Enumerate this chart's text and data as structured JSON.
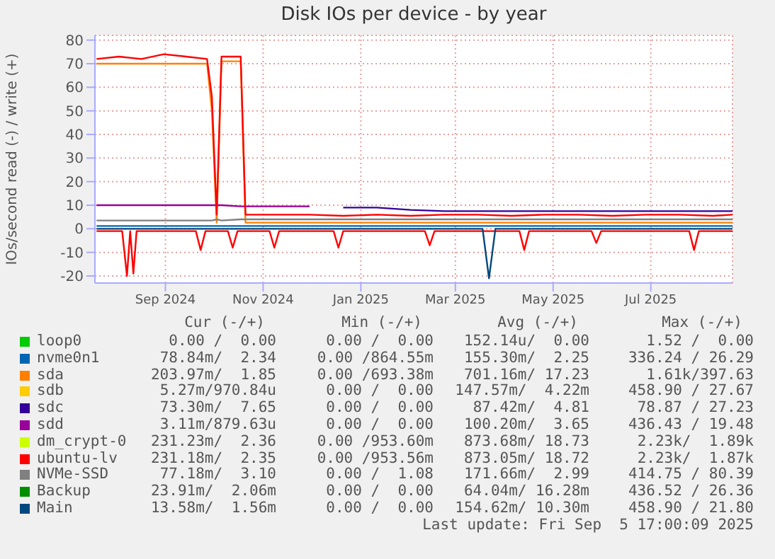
{
  "chart_data": {
    "type": "line",
    "title": "Disk IOs per device - by year",
    "ylabel": "IOs/second read (-) / write (+)",
    "x": [
      "2024-07-20",
      "2024-08-03",
      "2024-08-17",
      "2024-08-31",
      "2024-09-14",
      "2024-09-27",
      "2024-09-30",
      "2024-10-03",
      "2024-10-06",
      "2024-10-18",
      "2024-10-21",
      "2024-11-09",
      "2024-11-30",
      "2024-12-21",
      "2025-01-11",
      "2025-02-01",
      "2025-02-22",
      "2025-03-15",
      "2025-04-05",
      "2025-04-26",
      "2025-05-17",
      "2025-06-07",
      "2025-06-28",
      "2025-07-19",
      "2025-08-09",
      "2025-08-21"
    ],
    "xlim": [
      "2024-07-19",
      "2025-08-21"
    ],
    "xticks": [
      {
        "value": "2024-09-01",
        "label": "Sep 2024"
      },
      {
        "value": "2024-11-01",
        "label": "Nov 2024"
      },
      {
        "value": "2025-01-01",
        "label": "Jan 2025"
      },
      {
        "value": "2025-03-01",
        "label": "Mar 2025"
      },
      {
        "value": "2025-05-01",
        "label": "May 2025"
      },
      {
        "value": "2025-07-01",
        "label": "Jul 2025"
      }
    ],
    "ylim": [
      -23,
      82
    ],
    "yticks": [
      -20,
      -10,
      0,
      10,
      20,
      30,
      40,
      50,
      60,
      70,
      80
    ],
    "grid": true,
    "legend": "bottom",
    "series": [
      {
        "name": "loop0",
        "color": "#00cc00",
        "values": [
          null,
          null,
          null,
          null,
          null,
          null,
          null,
          null,
          null,
          null,
          null,
          null,
          null,
          null,
          null,
          null,
          null,
          null,
          null,
          null,
          null,
          null,
          null,
          null,
          null,
          null
        ]
      },
      {
        "name": "nvme0n1",
        "color": "#0066b3",
        "values": [
          1.2,
          1.2,
          1.2,
          1.2,
          1.2,
          1.2,
          1.2,
          1.2,
          1.2,
          1.2,
          1.2,
          1.2,
          1.2,
          1.2,
          1.2,
          1.2,
          1.2,
          1.2,
          1.2,
          1.2,
          1.2,
          1.2,
          1.2,
          1.2,
          1.2,
          1.2
        ]
      },
      {
        "name": "sda",
        "color": "#ff8000",
        "values": [
          70,
          70,
          70,
          70,
          70,
          70,
          50,
          2.6,
          71,
          71,
          2.6,
          2.6,
          2.6,
          2.6,
          2.6,
          2.6,
          2.6,
          2.6,
          2.6,
          2.6,
          2.6,
          2.6,
          2.6,
          2.6,
          2.6,
          2.6
        ]
      },
      {
        "name": "sdb",
        "color": "#ffcc00",
        "values": [
          null,
          null,
          null,
          null,
          null,
          null,
          null,
          null,
          null,
          null,
          null,
          null,
          null,
          null,
          null,
          null,
          null,
          null,
          null,
          null,
          null,
          null,
          null,
          null,
          null,
          null
        ]
      },
      {
        "name": "sdc",
        "color": "#330099",
        "values": [
          null,
          null,
          null,
          null,
          null,
          null,
          null,
          null,
          null,
          null,
          null,
          null,
          null,
          9,
          9,
          8,
          7.5,
          7.5,
          7.5,
          7.5,
          7.5,
          7.5,
          7.5,
          7.5,
          7.5,
          7.5
        ]
      },
      {
        "name": "sdd",
        "color": "#990099",
        "values": [
          10,
          10,
          10,
          10,
          10,
          10,
          10,
          10,
          10,
          9.5,
          9.5,
          9.5,
          9.5,
          null,
          null,
          null,
          null,
          null,
          null,
          null,
          null,
          null,
          null,
          null,
          null,
          null
        ]
      },
      {
        "name": "dm_crypt-0",
        "color": "#ccff00",
        "values": [
          null,
          null,
          null,
          null,
          null,
          null,
          null,
          null,
          null,
          null,
          null,
          null,
          null,
          null,
          null,
          null,
          null,
          null,
          null,
          null,
          null,
          null,
          null,
          null,
          null,
          null
        ]
      },
      {
        "name": "ubuntu-lv",
        "color": "#ff0000",
        "values": [
          72,
          73,
          72,
          74,
          73,
          72,
          56,
          6,
          73,
          73,
          6,
          6,
          6,
          5.5,
          6,
          5.5,
          6,
          6,
          5.5,
          6,
          6,
          5.5,
          6,
          6,
          5.5,
          6
        ]
      },
      {
        "name": "NVMe-SSD",
        "color": "#808080",
        "values": [
          3.5,
          3.5,
          3.5,
          3.5,
          3.5,
          3.5,
          3.5,
          4,
          3.5,
          4,
          4,
          4,
          4,
          4,
          4,
          4,
          4,
          4,
          4,
          4,
          4,
          4,
          4,
          4,
          4,
          4
        ]
      },
      {
        "name": "Backup",
        "color": "#008f00",
        "values": [
          null,
          null,
          null,
          null,
          null,
          null,
          null,
          null,
          null,
          null,
          null,
          null,
          null,
          null,
          null,
          null,
          null,
          null,
          null,
          null,
          null,
          null,
          null,
          null,
          null,
          null
        ]
      },
      {
        "name": "Main",
        "color": "#00487d",
        "values": [
          null,
          null,
          null,
          null,
          null,
          null,
          null,
          null,
          null,
          null,
          null,
          null,
          null,
          null,
          null,
          null,
          null,
          null,
          null,
          null,
          null,
          null,
          null,
          null,
          null,
          null
        ]
      },
      {
        "color": "#ff0000",
        "x": [
          "2024-07-20",
          "2024-08-05",
          "2024-08-08",
          "2024-08-10",
          "2024-08-12",
          "2024-08-14",
          "2024-09-20",
          "2024-09-23",
          "2024-09-26",
          "2024-10-10",
          "2024-10-13",
          "2024-10-16",
          "2024-11-05",
          "2024-11-08",
          "2024-11-11",
          "2024-12-15",
          "2024-12-18",
          "2024-12-21",
          "2025-02-10",
          "2025-02-13",
          "2025-02-16",
          "2025-04-10",
          "2025-04-13",
          "2025-04-16",
          "2025-05-25",
          "2025-05-28",
          "2025-05-31",
          "2025-07-25",
          "2025-07-28",
          "2025-07-31",
          "2025-08-21"
        ],
        "values": [
          -1,
          -1,
          -20,
          -1,
          -19,
          -1,
          -1,
          -9,
          -1,
          -1,
          -8,
          -1,
          -1,
          -8,
          -1,
          -1,
          -8,
          -1,
          -1,
          -7,
          -1,
          -1,
          -9,
          -1,
          -1,
          -6,
          -1,
          -1,
          -9,
          -1,
          -1
        ]
      },
      {
        "color": "#00487d",
        "x": [
          "2024-07-20",
          "2025-03-18",
          "2025-03-22",
          "2025-03-26",
          "2025-08-21"
        ],
        "values": [
          0,
          0,
          -21,
          0,
          0
        ]
      }
    ],
    "annotations": [
      "Cur (-/+)",
      "Min (-/+)",
      "Avg (-/+)",
      "Max (-/+)",
      "0.00 /  0.00",
      "0.00 /  0.00",
      "152.14u/  0.00",
      "1.52 /  0.00",
      "78.84m/  2.34",
      "0.00 /864.55m",
      "155.30m/  2.25",
      "336.24 / 26.29",
      "203.97m/  1.85",
      "0.00 /693.38m",
      "701.16m/ 17.23",
      "1.61k/397.63",
      "5.27m/970.84u",
      "0.00 /  0.00",
      "147.57m/  4.22m",
      "458.90 / 27.67",
      "73.30m/  7.65",
      "0.00 /  0.00",
      "87.42m/  4.81",
      "78.87 / 27.23",
      "3.11m/879.63u",
      "0.00 /  0.00",
      "100.20m/  3.65",
      "436.43 / 19.48",
      "231.23m/  2.36",
      "0.00 /953.60m",
      "873.68m/ 18.73",
      "2.23k/  1.89k",
      "231.18m/  2.35",
      "0.00 /953.56m",
      "873.05m/ 18.72",
      "2.23k/  1.87k",
      "77.18m/  3.10",
      "0.00 /  1.08",
      "171.66m/  2.99",
      "414.75 / 80.39",
      "23.91m/  2.06m",
      "0.00 /  0.00",
      "64.04m/ 16.28m",
      "436.52 / 26.36",
      "13.58m/  1.56m",
      "0.00 /  0.00",
      "154.62m/ 10.30m",
      "458.90 / 21.80",
      "Last update: Fri Sep  5 17:00:09 2025"
    ]
  }
}
